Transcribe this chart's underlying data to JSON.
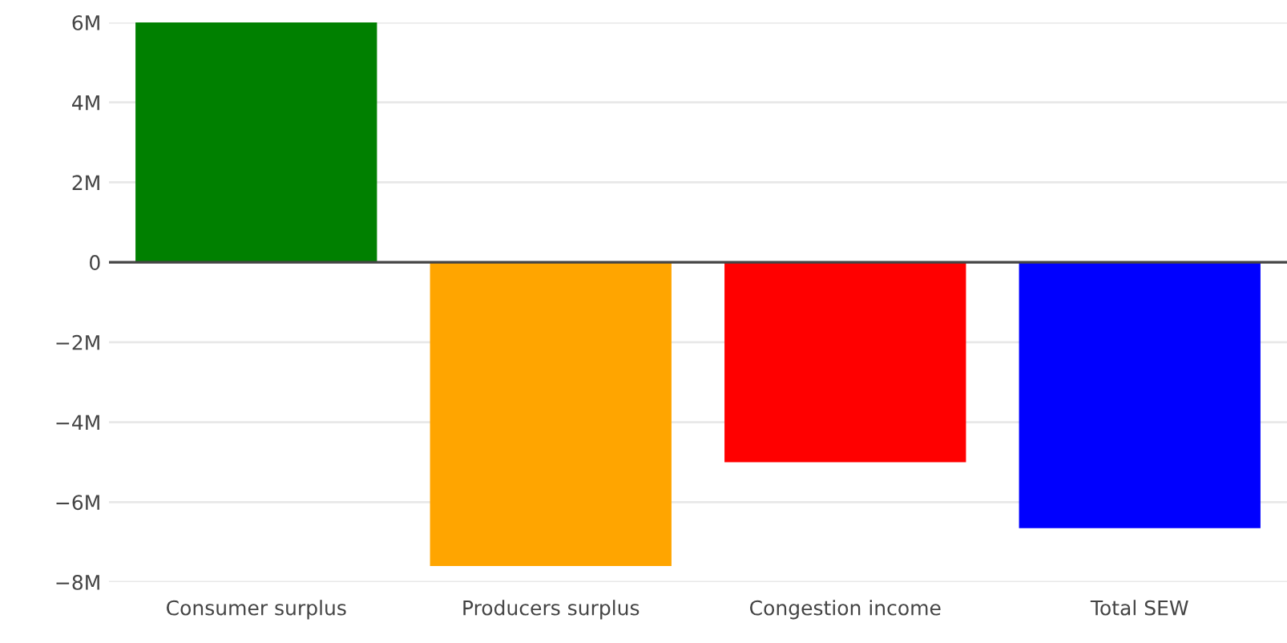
{
  "chart_data": {
    "type": "bar",
    "categories": [
      "Consumer surplus",
      "Producers surplus",
      "Congestion income",
      "Total SEW"
    ],
    "values": [
      6000000,
      -7600000,
      -5000000,
      -6650000
    ],
    "colors": [
      "#008000",
      "#ffa500",
      "#ff0000",
      "#0000ff"
    ],
    "ylim": [
      -8000000,
      6000000
    ],
    "yticks": [
      {
        "value": -8000000,
        "label": "−8M"
      },
      {
        "value": -6000000,
        "label": "−6M"
      },
      {
        "value": -4000000,
        "label": "−4M"
      },
      {
        "value": -2000000,
        "label": "−2M"
      },
      0,
      {
        "value": 2000000,
        "label": "2M"
      },
      {
        "value": 4000000,
        "label": "4M"
      },
      {
        "value": 6000000,
        "label": "6M"
      }
    ],
    "grid": "y",
    "ref_lines": [
      {
        "axis": "y",
        "value": 0,
        "color": "#444444"
      }
    ]
  }
}
